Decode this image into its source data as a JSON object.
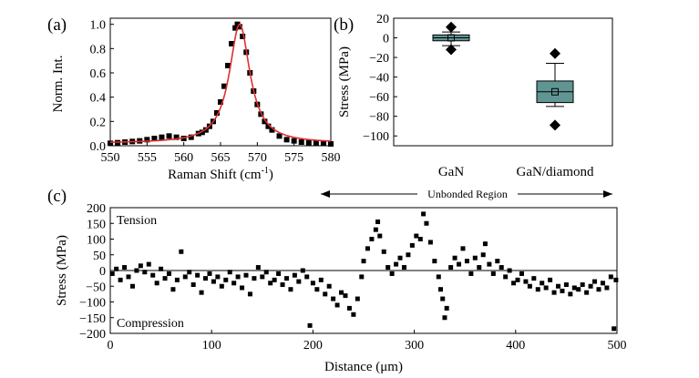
{
  "chart_data": [
    {
      "panel_label": "(a)",
      "type": "line+scatter",
      "xlabel": "Raman Shift (cm",
      "xlabel_sup": "-1",
      "xlabel_end": ")",
      "ylabel": "Norm. Int.",
      "xlim": [
        550,
        580
      ],
      "ylim": [
        0,
        1.05
      ],
      "xticks": [
        "550",
        "555",
        "560",
        "565",
        "570",
        "575",
        "580"
      ],
      "yticks": [
        "0.0",
        "0.2",
        "0.4",
        "0.6",
        "0.8",
        "1.0"
      ],
      "series": [
        {
          "kind": "scatter",
          "marker": "square",
          "color": "#000000",
          "x": [
            550.0,
            551.0,
            552.0,
            553.0,
            554.0,
            555.0,
            556.0,
            557.0,
            558.0,
            559.0,
            560.0,
            561.0,
            562.0,
            562.5,
            563.0,
            563.5,
            564.0,
            564.5,
            565.0,
            565.5,
            566.0,
            566.5,
            567.0,
            567.3,
            567.6,
            568.0,
            568.5,
            569.0,
            569.5,
            570.0,
            570.5,
            571.0,
            571.5,
            572.0,
            573.0,
            574.0,
            575.0,
            576.0,
            577.0,
            578.0,
            579.0,
            580.0
          ],
          "y": [
            0.02,
            0.025,
            0.03,
            0.035,
            0.04,
            0.05,
            0.06,
            0.07,
            0.08,
            0.07,
            0.06,
            0.07,
            0.1,
            0.11,
            0.13,
            0.16,
            0.2,
            0.27,
            0.36,
            0.49,
            0.66,
            0.84,
            0.97,
            1.0,
            0.98,
            0.9,
            0.77,
            0.6,
            0.45,
            0.34,
            0.26,
            0.2,
            0.16,
            0.13,
            0.08,
            0.05,
            0.04,
            0.03,
            0.025,
            0.02,
            0.02,
            0.015
          ]
        },
        {
          "kind": "fit",
          "color": "#e03030",
          "center": 567.6,
          "hwhm": 1.7,
          "baseline": 0.02
        }
      ]
    },
    {
      "panel_label": "(b)",
      "type": "box",
      "ylabel": "Stress (MPa)",
      "ylim": [
        -110,
        20
      ],
      "yticks": [
        "20",
        "0",
        "−20",
        "−40",
        "−60",
        "−80",
        "−100"
      ],
      "categories": [
        "GaN",
        "GaN/diamond"
      ],
      "box_color": "#5f9593",
      "boxes": [
        {
          "name": "GaN",
          "q1": -3,
          "median": 0,
          "q3": 3,
          "mean": 0,
          "whisker_low": -8,
          "whisker_high": 6,
          "outliers": [
            11,
            -12
          ]
        },
        {
          "name": "GaN/diamond",
          "q1": -66,
          "median": -55,
          "q3": -44,
          "mean": -55,
          "whisker_low": -70,
          "whisker_high": -26,
          "outliers": [
            -16,
            -89
          ]
        }
      ]
    },
    {
      "panel_label": "(c)",
      "type": "scatter",
      "xlabel": "Distance (μm)",
      "ylabel": "Stress (MPa)",
      "xlim": [
        0,
        500
      ],
      "ylim": [
        -200,
        200
      ],
      "xticks": [
        "0",
        "100",
        "200",
        "300",
        "400",
        "500"
      ],
      "yticks": [
        "200",
        "150",
        "100",
        "50",
        "0",
        "−50",
        "−100",
        "−150",
        "−200"
      ],
      "annotations": {
        "top": "Tension",
        "bottom": "Compression",
        "region": "Unbonded Region"
      },
      "region_range": [
        200,
        500
      ],
      "zero_line": true,
      "points": [
        [
          2,
          -10
        ],
        [
          6,
          5
        ],
        [
          10,
          -30
        ],
        [
          14,
          10
        ],
        [
          18,
          -20
        ],
        [
          22,
          -50
        ],
        [
          26,
          0
        ],
        [
          30,
          15
        ],
        [
          34,
          -5
        ],
        [
          38,
          20
        ],
        [
          42,
          -15
        ],
        [
          46,
          -40
        ],
        [
          50,
          5
        ],
        [
          54,
          -25
        ],
        [
          58,
          -10
        ],
        [
          62,
          -60
        ],
        [
          66,
          -30
        ],
        [
          70,
          60
        ],
        [
          74,
          -20
        ],
        [
          78,
          -5
        ],
        [
          82,
          -45
        ],
        [
          86,
          -15
        ],
        [
          90,
          -70
        ],
        [
          94,
          -25
        ],
        [
          98,
          -10
        ],
        [
          102,
          -35
        ],
        [
          106,
          -20
        ],
        [
          110,
          -50
        ],
        [
          114,
          -30
        ],
        [
          118,
          -5
        ],
        [
          122,
          -40
        ],
        [
          126,
          -20
        ],
        [
          130,
          -55
        ],
        [
          134,
          -15
        ],
        [
          138,
          -75
        ],
        [
          142,
          -25
        ],
        [
          146,
          10
        ],
        [
          150,
          -20
        ],
        [
          154,
          -5
        ],
        [
          158,
          -40
        ],
        [
          162,
          -30
        ],
        [
          166,
          -10
        ],
        [
          170,
          -45
        ],
        [
          174,
          -25
        ],
        [
          178,
          -60
        ],
        [
          182,
          -15
        ],
        [
          186,
          -35
        ],
        [
          190,
          0
        ],
        [
          194,
          -20
        ],
        [
          197,
          -175
        ],
        [
          200,
          -40
        ],
        [
          204,
          -60
        ],
        [
          208,
          -30
        ],
        [
          212,
          -75
        ],
        [
          216,
          -50
        ],
        [
          220,
          -90
        ],
        [
          224,
          -110
        ],
        [
          228,
          -70
        ],
        [
          232,
          -80
        ],
        [
          236,
          -120
        ],
        [
          240,
          -140
        ],
        [
          244,
          -90
        ],
        [
          248,
          -20
        ],
        [
          250,
          30
        ],
        [
          254,
          70
        ],
        [
          258,
          100
        ],
        [
          262,
          130
        ],
        [
          264,
          155
        ],
        [
          266,
          110
        ],
        [
          270,
          60
        ],
        [
          274,
          10
        ],
        [
          278,
          -10
        ],
        [
          282,
          20
        ],
        [
          286,
          40
        ],
        [
          290,
          10
        ],
        [
          294,
          50
        ],
        [
          298,
          80
        ],
        [
          302,
          110
        ],
        [
          306,
          100
        ],
        [
          309,
          180
        ],
        [
          312,
          150
        ],
        [
          316,
          90
        ],
        [
          320,
          30
        ],
        [
          324,
          -20
        ],
        [
          326,
          -60
        ],
        [
          328,
          -90
        ],
        [
          330,
          -150
        ],
        [
          332,
          -120
        ],
        [
          336,
          10
        ],
        [
          340,
          40
        ],
        [
          344,
          20
        ],
        [
          348,
          70
        ],
        [
          352,
          30
        ],
        [
          356,
          -10
        ],
        [
          360,
          40
        ],
        [
          364,
          10
        ],
        [
          368,
          50
        ],
        [
          370,
          85
        ],
        [
          374,
          20
        ],
        [
          378,
          -10
        ],
        [
          382,
          30
        ],
        [
          386,
          10
        ],
        [
          390,
          -20
        ],
        [
          394,
          0
        ],
        [
          398,
          -40
        ],
        [
          402,
          -30
        ],
        [
          406,
          -10
        ],
        [
          410,
          -35
        ],
        [
          414,
          -50
        ],
        [
          418,
          -25
        ],
        [
          422,
          -60
        ],
        [
          426,
          -40
        ],
        [
          430,
          -55
        ],
        [
          434,
          -30
        ],
        [
          438,
          -70
        ],
        [
          442,
          -50
        ],
        [
          446,
          -65
        ],
        [
          450,
          -45
        ],
        [
          454,
          -75
        ],
        [
          458,
          -55
        ],
        [
          462,
          -60
        ],
        [
          466,
          -45
        ],
        [
          470,
          -70
        ],
        [
          474,
          -50
        ],
        [
          478,
          -35
        ],
        [
          482,
          -60
        ],
        [
          486,
          -40
        ],
        [
          490,
          -55
        ],
        [
          494,
          -20
        ],
        [
          497,
          -185
        ],
        [
          499,
          -30
        ]
      ]
    }
  ]
}
